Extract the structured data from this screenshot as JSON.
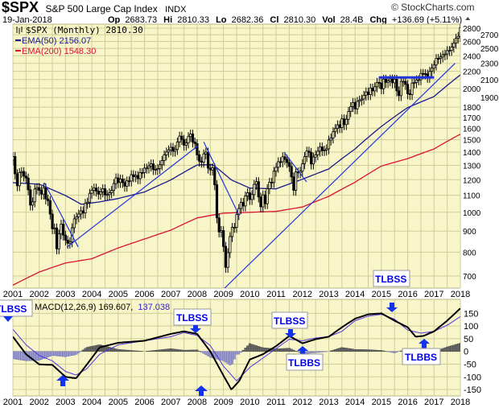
{
  "header": {
    "symbol": "$SPX",
    "name": "S&P 500 Large Cap Index",
    "exchange": "INDX",
    "copyright": "© StockCharts.com",
    "date": "19-Jan-2018",
    "op_label": "Op",
    "op": "2683.73",
    "hi_label": "Hi",
    "hi": "2810.33",
    "lo_label": "Lo",
    "lo": "2682.36",
    "cl_label": "Cl",
    "cl": "2810.30",
    "vol_label": "Vol",
    "vol": "28.4B",
    "chg_label": "Chg",
    "chg": "+136.69 (+5.11%)",
    "chg_icon": "up-triangle-icon"
  },
  "legend": {
    "price": "$SPX (Monthly) 2810.30",
    "ema50": "EMA(50) 2156.07",
    "ema200": "EMA(200) 1548.30",
    "macd": "MACD(12,26,9) 169.607,",
    "macd_signal": "137.038"
  },
  "annotations": {
    "a1": "TLBSS",
    "a2": "TLBSS",
    "a3": "TLBSS",
    "a4": "TLBBS",
    "a5": "TLBSS",
    "a6": "TLBBS"
  },
  "colors": {
    "background": "#f8f6c8",
    "grid": "#cfcd96",
    "price": "#000000",
    "ema50": "#1a1a8c",
    "ema200": "#dd1133",
    "trendline": "#2233dd",
    "macd": "#000000",
    "signal": "#5533dd",
    "hist_pos": "#666666",
    "hist_neg": "#9a9ad0",
    "tag": "#0000ee"
  },
  "chart_data": [
    {
      "type": "line",
      "title": "$SPX S&P 500 Large Cap Index (Monthly)",
      "scale": "log",
      "ylim": [
        655,
        2850
      ],
      "xlim": [
        2001,
        2018
      ],
      "y_ticks": [
        "700",
        "800",
        "900",
        "1000",
        "1100",
        "1200",
        "1300",
        "1400",
        "1500",
        "1600",
        "1700",
        "1800",
        "1900",
        "2000",
        "2100",
        "2200",
        "2300",
        "2400",
        "2500",
        "2600",
        "2700",
        "2800"
      ],
      "x_ticks": [
        "2001",
        "2002",
        "2003",
        "2004",
        "2005",
        "2006",
        "2007",
        "2008",
        "2009",
        "2010",
        "2011",
        "2012",
        "2013",
        "2014",
        "2015",
        "2016",
        "2017",
        "2018"
      ],
      "grid": true,
      "price_start": 2001,
      "price_monthly_close": [
        1366,
        1240,
        1160,
        1249,
        1256,
        1224,
        1211,
        1134,
        1041,
        1060,
        1139,
        1148,
        1130,
        1107,
        1147,
        1077,
        1067,
        990,
        912,
        916,
        815,
        886,
        936,
        880,
        856,
        841,
        848,
        917,
        964,
        975,
        990,
        1008,
        996,
        1051,
        1058,
        1112,
        1131,
        1145,
        1126,
        1107,
        1121,
        1141,
        1102,
        1104,
        1115,
        1130,
        1174,
        1212,
        1181,
        1204,
        1181,
        1157,
        1192,
        1191,
        1234,
        1220,
        1229,
        1207,
        1249,
        1248,
        1280,
        1281,
        1295,
        1311,
        1270,
        1270,
        1277,
        1304,
        1336,
        1378,
        1401,
        1418,
        1438,
        1407,
        1421,
        1482,
        1531,
        1503,
        1455,
        1474,
        1527,
        1549,
        1481,
        1468,
        1379,
        1331,
        1323,
        1386,
        1400,
        1280,
        1267,
        1283,
        1166,
        969,
        896,
        903,
        826,
        735,
        798,
        873,
        919,
        919,
        987,
        1021,
        1057,
        1036,
        1096,
        1115,
        1074,
        1104,
        1169,
        1187,
        1089,
        1031,
        1102,
        1049,
        1141,
        1183,
        1181,
        1258,
        1286,
        1327,
        1326,
        1364,
        1345,
        1321,
        1292,
        1219,
        1131,
        1253,
        1247,
        1258,
        1312,
        1366,
        1408,
        1398,
        1310,
        1362,
        1379,
        1407,
        1441,
        1412,
        1416,
        1426,
        1498,
        1515,
        1569,
        1598,
        1631,
        1606,
        1686,
        1633,
        1682,
        1757,
        1806,
        1848,
        1783,
        1859,
        1872,
        1884,
        1924,
        1960,
        1931,
        2003,
        1972,
        2018,
        2068,
        2059,
        1995,
        2105,
        2068,
        2086,
        2107,
        2063,
        2104,
        1972,
        1920,
        2079,
        2080,
        2044,
        1940,
        1932,
        2060,
        2065,
        2097,
        2099,
        2174,
        2171,
        2168,
        2126,
        2199,
        2239,
        2279,
        2364,
        2363,
        2384,
        2412,
        2423,
        2470,
        2472,
        2519,
        2575,
        2648,
        2674,
        2810
      ],
      "series": [
        {
          "name": "EMA(50)",
          "points": [
            [
              2001,
              1180
            ],
            [
              2002,
              1170
            ],
            [
              2003,
              1098
            ],
            [
              2003.6,
              1045
            ],
            [
              2004.3,
              1060
            ],
            [
              2005,
              1080
            ],
            [
              2006,
              1120
            ],
            [
              2007,
              1198
            ],
            [
              2008,
              1303
            ],
            [
              2008.6,
              1305
            ],
            [
              2009.3,
              1198
            ],
            [
              2010,
              1145
            ],
            [
              2011,
              1140
            ],
            [
              2012,
              1203
            ],
            [
              2013,
              1274
            ],
            [
              2014,
              1425
            ],
            [
              2015,
              1616
            ],
            [
              2016,
              1796
            ],
            [
              2017,
              1910
            ],
            [
              2018,
              2156
            ]
          ]
        },
        {
          "name": "EMA(200)",
          "points": [
            [
              2001,
              665
            ],
            [
              2002,
              716
            ],
            [
              2003,
              753
            ],
            [
              2004,
              771
            ],
            [
              2005,
              819
            ],
            [
              2006,
              861
            ],
            [
              2007,
              905
            ],
            [
              2008,
              969
            ],
            [
              2009,
              995
            ],
            [
              2010,
              1000
            ],
            [
              2011,
              1005
            ],
            [
              2012,
              1030
            ],
            [
              2013,
              1093
            ],
            [
              2014,
              1183
            ],
            [
              2015,
              1295
            ],
            [
              2016,
              1350
            ],
            [
              2017,
              1425
            ],
            [
              2018,
              1548
            ]
          ]
        }
      ],
      "trendlines": [
        [
          [
            2002.19,
            1180
          ],
          [
            2003.48,
            824
          ]
        ],
        [
          [
            2003.05,
            822
          ],
          [
            2008.03,
            1450
          ]
        ],
        [
          [
            2008.25,
            1482
          ],
          [
            2009.6,
            981
          ]
        ],
        [
          [
            2009.0,
            650
          ],
          [
            2017.8,
            2300
          ]
        ],
        [
          [
            2011.3,
            1400
          ],
          [
            2012.16,
            1185
          ]
        ],
        [
          [
            2014.9,
            2125
          ],
          [
            2017.0,
            2125
          ]
        ]
      ]
    },
    {
      "type": "line",
      "title": "MACD(12,26,9)",
      "ylim": [
        -180,
        200
      ],
      "y_ticks": [
        "150",
        "100",
        "50",
        "0",
        "-50",
        "-100",
        "-150"
      ],
      "x_ticks": [
        "2001",
        "2002",
        "2003",
        "2004",
        "2005",
        "2006",
        "2007",
        "2008",
        "2009",
        "2010",
        "2011",
        "2012",
        "2013",
        "2014",
        "2015",
        "2016",
        "2017",
        "2018"
      ],
      "series": [
        {
          "name": "MACD",
          "points": [
            [
              2001,
              58
            ],
            [
              2001.5,
              -11
            ],
            [
              2002,
              -51
            ],
            [
              2002.5,
              -53
            ],
            [
              2003,
              -100
            ],
            [
              2003.4,
              -106
            ],
            [
              2003.8,
              -53
            ],
            [
              2004.3,
              16
            ],
            [
              2005,
              34
            ],
            [
              2006,
              42
            ],
            [
              2007,
              69
            ],
            [
              2007.5,
              79
            ],
            [
              2008,
              69
            ],
            [
              2008.5,
              0
            ],
            [
              2009,
              -95
            ],
            [
              2009.3,
              -150
            ],
            [
              2009.6,
              -116
            ],
            [
              2010,
              -32
            ],
            [
              2010.5,
              -11
            ],
            [
              2011,
              21
            ],
            [
              2011.5,
              61
            ],
            [
              2012,
              32
            ],
            [
              2012.5,
              48
            ],
            [
              2013,
              58
            ],
            [
              2013.5,
              95
            ],
            [
              2014,
              129
            ],
            [
              2014.5,
              146
            ],
            [
              2015,
              150
            ],
            [
              2015.5,
              121
            ],
            [
              2016,
              95
            ],
            [
              2016.3,
              58
            ],
            [
              2016.6,
              61
            ],
            [
              2017,
              79
            ],
            [
              2017.5,
              121
            ],
            [
              2018,
              169.6
            ]
          ]
        },
        {
          "name": "Signal",
          "points": [
            [
              2001,
              87
            ],
            [
              2001.5,
              26
            ],
            [
              2002,
              -16
            ],
            [
              2002.5,
              -37
            ],
            [
              2003,
              -79
            ],
            [
              2003.4,
              -93
            ],
            [
              2003.8,
              -69
            ],
            [
              2004.3,
              -11
            ],
            [
              2005,
              26
            ],
            [
              2006,
              42
            ],
            [
              2007,
              58
            ],
            [
              2007.5,
              74
            ],
            [
              2008,
              63
            ],
            [
              2008.5,
              23
            ],
            [
              2009,
              -58
            ],
            [
              2009.5,
              -116
            ],
            [
              2010,
              -63
            ],
            [
              2010.5,
              -26
            ],
            [
              2011,
              11
            ],
            [
              2011.5,
              48
            ],
            [
              2012,
              42
            ],
            [
              2012.5,
              53
            ],
            [
              2013,
              58
            ],
            [
              2013.5,
              79
            ],
            [
              2014,
              121
            ],
            [
              2014.5,
              139
            ],
            [
              2015,
              146
            ],
            [
              2015.5,
              127
            ],
            [
              2016,
              84
            ],
            [
              2016.5,
              72
            ],
            [
              2017,
              79
            ],
            [
              2017.5,
              103
            ],
            [
              2018,
              137
            ]
          ]
        }
      ],
      "histogram": "MACD minus Signal"
    }
  ]
}
